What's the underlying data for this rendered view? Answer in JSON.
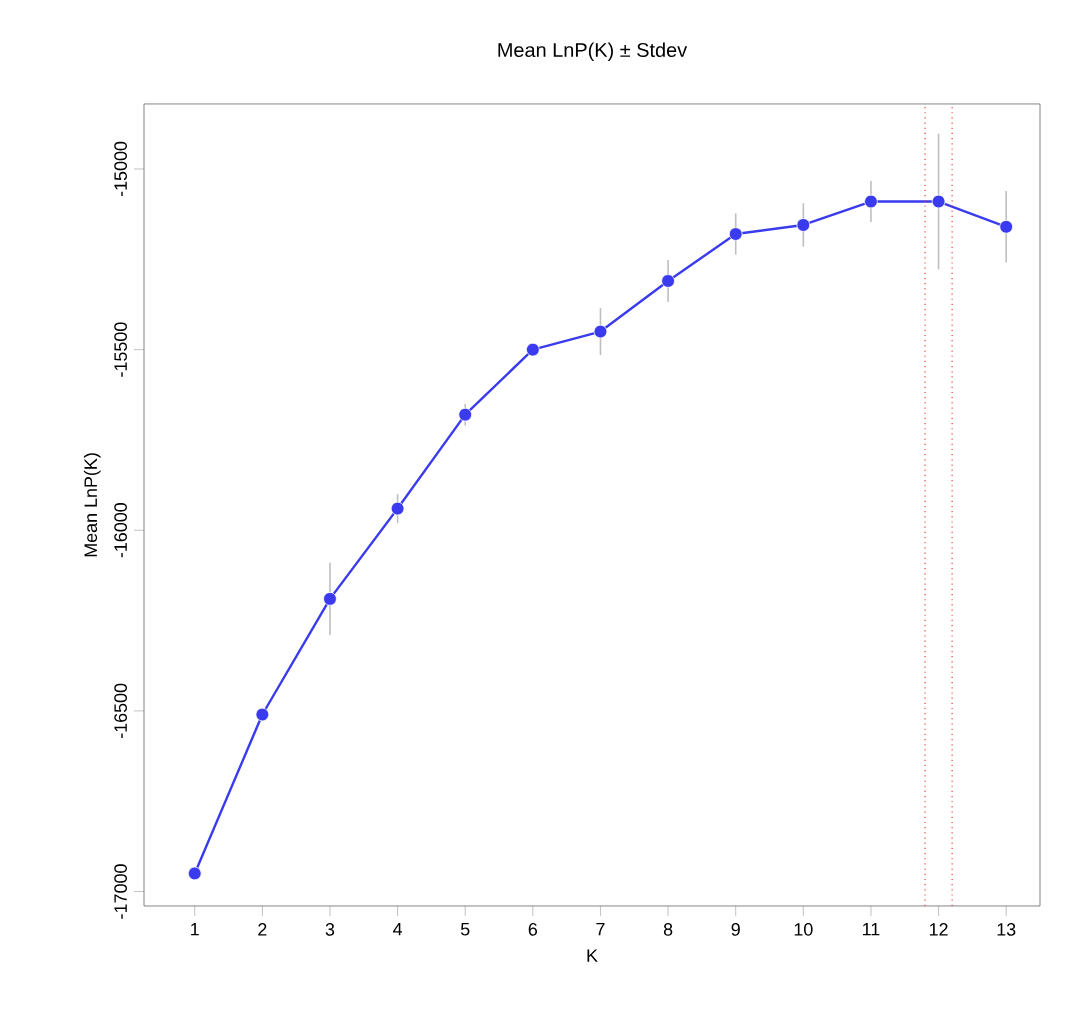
{
  "chart_data": {
    "type": "line",
    "title": "Mean LnP(K) ± Stdev",
    "xlabel": "K",
    "ylabel": "Mean LnP(K)",
    "x": [
      1,
      2,
      3,
      4,
      5,
      6,
      7,
      8,
      9,
      10,
      11,
      12,
      13
    ],
    "series": [
      {
        "color": "#3a3aee",
        "values": [
          -16950,
          -16510,
          -16190,
          -15940,
          -15680,
          -15500,
          -15450,
          -15310,
          -15180,
          -15155,
          -15090,
          -15090,
          -15160
        ],
        "errors": [
          null,
          null,
          100,
          40,
          30,
          null,
          65,
          58,
          57,
          60,
          57,
          188,
          99
        ]
      }
    ],
    "xlim": [
      0.25,
      13.5
    ],
    "ylim": [
      -17040,
      -14820
    ],
    "xticks": [
      1,
      2,
      3,
      4,
      5,
      6,
      7,
      8,
      9,
      10,
      11,
      12,
      13
    ],
    "yticks": [
      -17000,
      -16500,
      -16000,
      -15500,
      -15000
    ],
    "ref_lines": [
      {
        "axis": "x",
        "value": 11.8,
        "color": "#e8433a",
        "line_style": "dotted"
      },
      {
        "axis": "x",
        "value": 12.2,
        "color": "#e8433a",
        "line_style": "dotted"
      }
    ],
    "marker": "circle",
    "line_style": "solid"
  }
}
